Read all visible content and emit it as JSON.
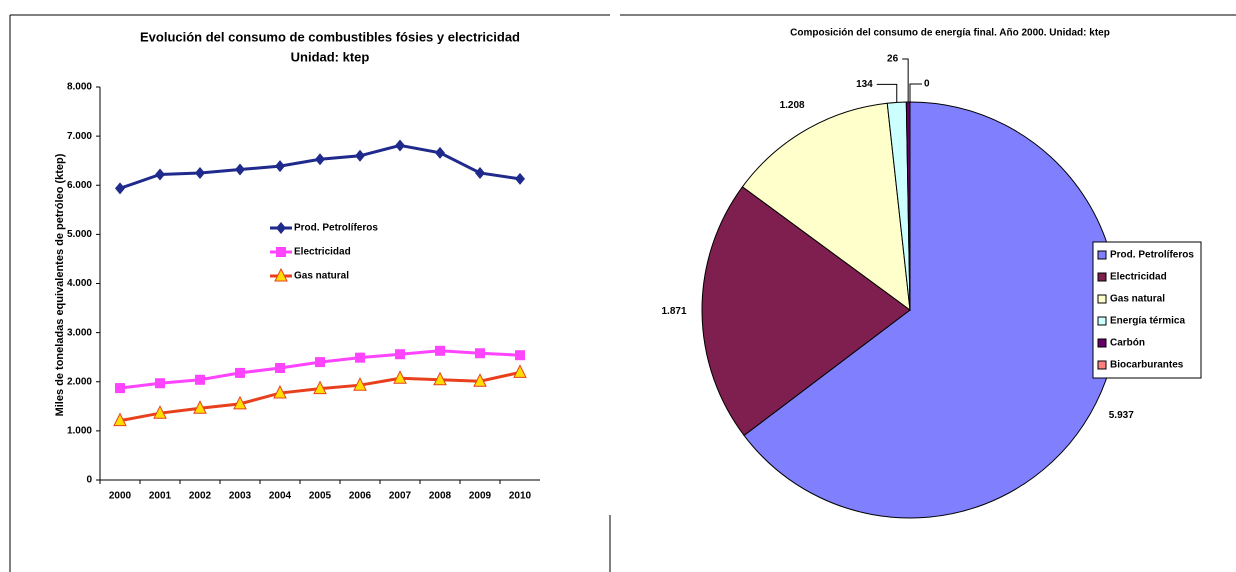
{
  "chart_data": [
    {
      "type": "line",
      "title": "Evolución del consumo de combustibles fósies y electricidad",
      "subtitle": "Unidad: ktep",
      "y_label": "Miles de toneladas equivalentes de petróleo (ktep)",
      "categories": [
        "2000",
        "2001",
        "2002",
        "2003",
        "2004",
        "2005",
        "2006",
        "2007",
        "2008",
        "2009",
        "2010"
      ],
      "series": [
        {
          "name": "Prod. Petrolíferos",
          "color": "#1f2a8c",
          "marker": "diamond",
          "marker_color": "#1f2a8c",
          "values": [
            5937,
            6220,
            6250,
            6320,
            6390,
            6530,
            6600,
            6810,
            6660,
            6250,
            6130
          ]
        },
        {
          "name": "Electricidad",
          "color": "#ff44ff",
          "marker": "square",
          "marker_color": "#ff44ff",
          "values": [
            1871,
            1970,
            2040,
            2180,
            2280,
            2400,
            2490,
            2560,
            2630,
            2580,
            2540
          ]
        },
        {
          "name": "Gas natural",
          "color": "#e8401c",
          "marker": "triangle",
          "marker_color": "#ffdd00",
          "values": [
            1208,
            1360,
            1460,
            1550,
            1770,
            1860,
            1930,
            2070,
            2040,
            2010,
            2190
          ]
        }
      ],
      "ylim": [
        0,
        8000
      ],
      "yticks": [
        0,
        {
          "value": 1000,
          "label": "1.000"
        },
        {
          "value": 2000,
          "label": "2.000"
        },
        {
          "value": 3000,
          "label": "3.000"
        },
        {
          "value": 4000,
          "label": "4.000"
        },
        {
          "value": 5000,
          "label": "5.000"
        },
        {
          "value": 6000,
          "label": "6.000"
        },
        {
          "value": 7000,
          "label": "7.000"
        },
        {
          "value": 8000,
          "label": "8.000"
        }
      ],
      "grid": false
    },
    {
      "type": "pie",
      "title": "Composición del consumo de energía final. Año 2000. Unidad: ktep",
      "categories": [
        "Prod. Petrolíferos",
        "Electricidad",
        "Gas natural",
        "Energía térmica",
        "Carbón",
        "Biocarburantes"
      ],
      "values": [
        5937,
        1871,
        1208,
        134,
        26,
        0
      ],
      "value_labels": [
        "5.937",
        "1.871",
        "1.208",
        "134",
        "26",
        "0"
      ],
      "colors": [
        "#8080ff",
        "#7f1f4f",
        "#ffffcc",
        "#ccffff",
        "#660066",
        "#ff8080"
      ],
      "legend": "right"
    }
  ]
}
